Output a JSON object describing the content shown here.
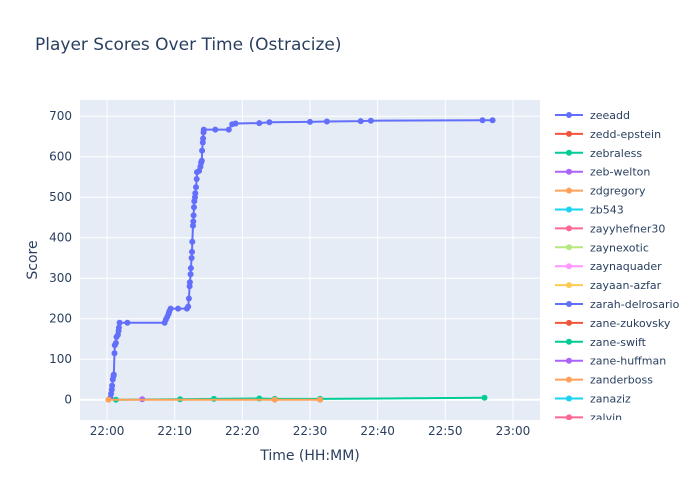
{
  "chart_data": {
    "type": "line",
    "title": "Player Scores Over Time (Ostracize)",
    "xlabel": "Time (HH:MM)",
    "ylabel": "Score",
    "x_unit": "minutes after 22:00",
    "xlim": [
      -4,
      64
    ],
    "ylim": [
      -50,
      740
    ],
    "x_ticks": [
      {
        "v": 0,
        "label": "22:00"
      },
      {
        "v": 10,
        "label": "22:10"
      },
      {
        "v": 20,
        "label": "22:20"
      },
      {
        "v": 30,
        "label": "22:30"
      },
      {
        "v": 40,
        "label": "22:40"
      },
      {
        "v": 50,
        "label": "22:50"
      },
      {
        "v": 60,
        "label": "23:00"
      }
    ],
    "y_ticks": [
      0,
      100,
      200,
      300,
      400,
      500,
      600,
      700
    ],
    "grid": true,
    "legend_position": "right",
    "series": [
      {
        "name": "zeeadd",
        "color": "#636efa",
        "points": [
          [
            0.5,
            5
          ],
          [
            0.6,
            15
          ],
          [
            0.7,
            25
          ],
          [
            0.75,
            35
          ],
          [
            0.85,
            50
          ],
          [
            0.95,
            58
          ],
          [
            1.0,
            62
          ],
          [
            1.1,
            115
          ],
          [
            1.15,
            135
          ],
          [
            1.3,
            140
          ],
          [
            1.4,
            155
          ],
          [
            1.6,
            160
          ],
          [
            1.7,
            170
          ],
          [
            1.75,
            178
          ],
          [
            1.85,
            190
          ],
          [
            3.0,
            190
          ],
          [
            8.5,
            190
          ],
          [
            8.7,
            198
          ],
          [
            8.9,
            205
          ],
          [
            9.1,
            212
          ],
          [
            9.2,
            218
          ],
          [
            9.4,
            225
          ],
          [
            10.5,
            225
          ],
          [
            11.8,
            225
          ],
          [
            12.0,
            230
          ],
          [
            12.1,
            250
          ],
          [
            12.2,
            280
          ],
          [
            12.25,
            290
          ],
          [
            12.35,
            310
          ],
          [
            12.4,
            325
          ],
          [
            12.5,
            350
          ],
          [
            12.55,
            365
          ],
          [
            12.6,
            390
          ],
          [
            12.7,
            430
          ],
          [
            12.75,
            440
          ],
          [
            12.8,
            455
          ],
          [
            12.85,
            475
          ],
          [
            12.9,
            490
          ],
          [
            13.0,
            500
          ],
          [
            13.05,
            510
          ],
          [
            13.15,
            525
          ],
          [
            13.25,
            545
          ],
          [
            13.3,
            562
          ],
          [
            13.6,
            565
          ],
          [
            13.8,
            575
          ],
          [
            13.9,
            585
          ],
          [
            14.0,
            590
          ],
          [
            14.05,
            615
          ],
          [
            14.15,
            635
          ],
          [
            14.2,
            645
          ],
          [
            14.25,
            660
          ],
          [
            14.3,
            667
          ],
          [
            16.0,
            667
          ],
          [
            18.0,
            667
          ],
          [
            18.5,
            680
          ],
          [
            19.0,
            682
          ],
          [
            22.5,
            683
          ],
          [
            24.0,
            685
          ],
          [
            30.0,
            686
          ],
          [
            32.5,
            687
          ],
          [
            37.5,
            688
          ],
          [
            39.0,
            689
          ],
          [
            55.5,
            690
          ],
          [
            57.0,
            690
          ]
        ]
      },
      {
        "name": "zebraless",
        "color": "#00cc96",
        "points": [
          [
            1.3,
            0
          ],
          [
            10.8,
            1
          ],
          [
            15.8,
            2
          ],
          [
            22.5,
            3
          ],
          [
            24.8,
            2
          ],
          [
            31.5,
            2
          ],
          [
            55.8,
            5
          ]
        ]
      },
      {
        "name": "zeb-welton",
        "color": "#ab63fa",
        "points": [
          [
            5.2,
            1
          ]
        ]
      },
      {
        "name": "zdgregory",
        "color": "#FFA15A",
        "points": [
          [
            0.2,
            0
          ],
          [
            24.8,
            0
          ],
          [
            31.5,
            0
          ]
        ]
      }
    ],
    "legend_entries": [
      {
        "name": "zeeadd",
        "color": "#636efa"
      },
      {
        "name": "zedd-epstein",
        "color": "#EF553B"
      },
      {
        "name": "zebraless",
        "color": "#00cc96"
      },
      {
        "name": "zeb-welton",
        "color": "#ab63fa"
      },
      {
        "name": "zdgregory",
        "color": "#FFA15A"
      },
      {
        "name": "zb543",
        "color": "#19d3f3"
      },
      {
        "name": "zayyhefner30",
        "color": "#FF6692"
      },
      {
        "name": "zaynexotic",
        "color": "#B6E880"
      },
      {
        "name": "zaynaquader",
        "color": "#FF97FF"
      },
      {
        "name": "zayaan-azfar",
        "color": "#FECB52"
      },
      {
        "name": "zarah-delrosario",
        "color": "#636efa"
      },
      {
        "name": "zane-zukovsky",
        "color": "#EF553B"
      },
      {
        "name": "zane-swift",
        "color": "#00cc96"
      },
      {
        "name": "zane-huffman",
        "color": "#ab63fa"
      },
      {
        "name": "zanderboss",
        "color": "#FFA15A"
      },
      {
        "name": "zanaziz",
        "color": "#19d3f3"
      },
      {
        "name": "zalvin",
        "color": "#FF6692"
      }
    ]
  }
}
